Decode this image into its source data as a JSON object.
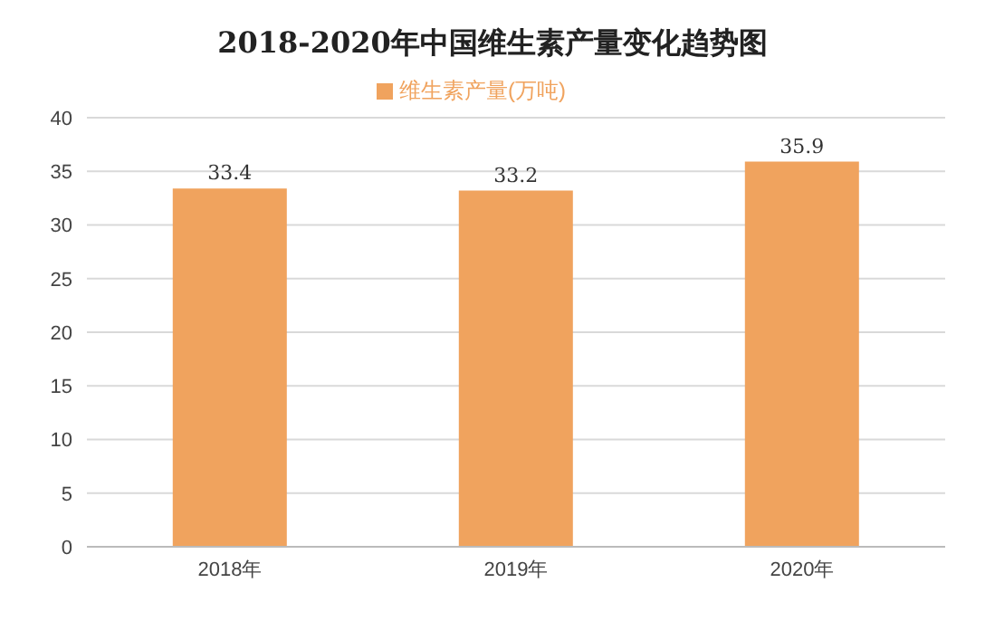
{
  "chart_data": {
    "type": "bar",
    "title": "2018-2020年中国维生素产量变化趋势图",
    "categories": [
      "2018年",
      "2019年",
      "2020年"
    ],
    "series": [
      {
        "name": "维生素产量(万吨)",
        "color": "#f0a35e",
        "values": [
          33.4,
          33.2,
          35.9
        ]
      }
    ],
    "ylim": [
      0,
      40
    ],
    "yticks": [
      0,
      5,
      10,
      15,
      20,
      25,
      30,
      35,
      40
    ],
    "grid": "y",
    "legend": "top",
    "data_labels": true
  }
}
